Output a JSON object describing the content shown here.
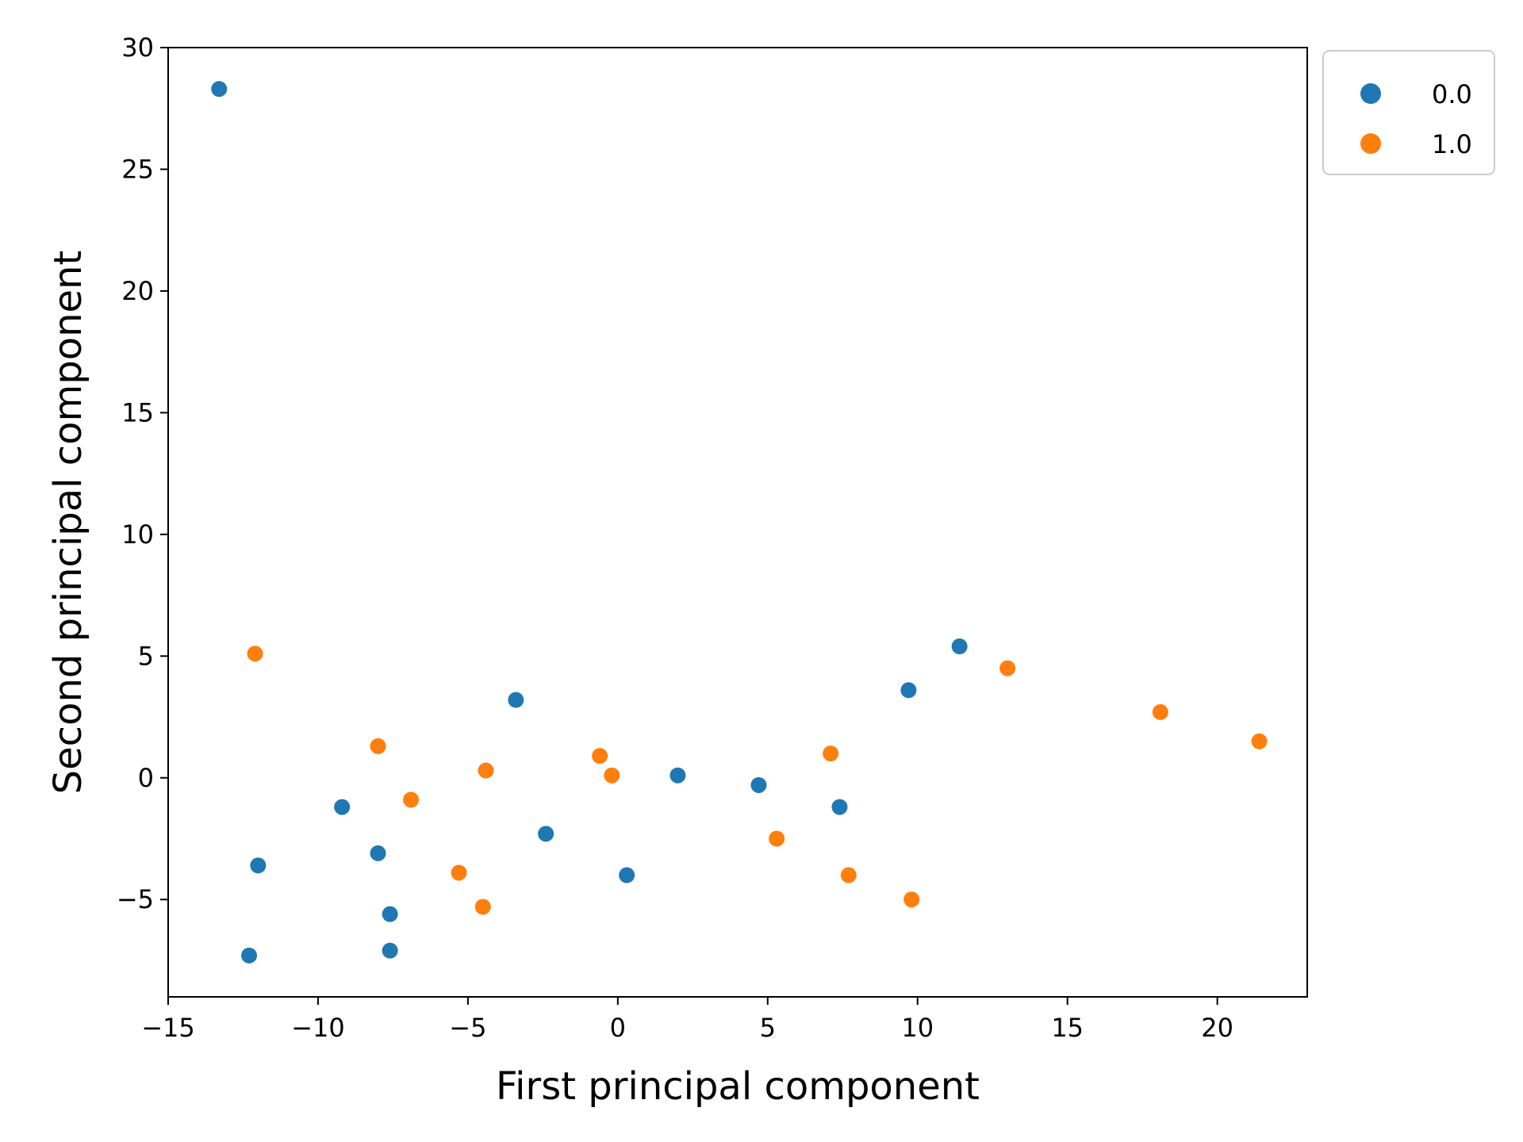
{
  "chart_data": {
    "type": "scatter",
    "xlabel": "First principal component",
    "ylabel": "Second principal component",
    "xlim": [
      -15,
      23
    ],
    "ylim": [
      -9,
      30
    ],
    "xticks": [
      -15,
      -10,
      -5,
      0,
      5,
      10,
      15,
      20
    ],
    "xtick_labels": [
      "−15",
      "−10",
      "−5",
      "0",
      "5",
      "10",
      "15",
      "20"
    ],
    "yticks": [
      -5,
      0,
      5,
      10,
      15,
      20,
      25,
      30
    ],
    "ytick_labels": [
      "−5",
      "0",
      "5",
      "10",
      "15",
      "20",
      "25",
      "30"
    ],
    "grid": false,
    "legend_placement": "upper-right-outside",
    "series": [
      {
        "name": "0.0",
        "color": "#1f77b4",
        "points": [
          [
            -13.3,
            28.3
          ],
          [
            -12.3,
            -7.3
          ],
          [
            -12.0,
            -3.6
          ],
          [
            -9.2,
            -1.2
          ],
          [
            -8.0,
            -3.1
          ],
          [
            -7.6,
            -5.6
          ],
          [
            -7.6,
            -7.1
          ],
          [
            -3.4,
            3.2
          ],
          [
            -2.4,
            -2.3
          ],
          [
            0.3,
            -4.0
          ],
          [
            2.0,
            0.1
          ],
          [
            4.7,
            -0.3
          ],
          [
            7.4,
            -1.2
          ],
          [
            9.7,
            3.6
          ],
          [
            11.4,
            5.4
          ]
        ]
      },
      {
        "name": "1.0",
        "color": "#ff7f0e",
        "points": [
          [
            -12.1,
            5.1
          ],
          [
            -8.0,
            1.3
          ],
          [
            -6.9,
            -0.9
          ],
          [
            -5.3,
            -3.9
          ],
          [
            -4.5,
            -5.3
          ],
          [
            -4.4,
            0.3
          ],
          [
            -0.6,
            0.9
          ],
          [
            -0.2,
            0.1
          ],
          [
            5.3,
            -2.5
          ],
          [
            7.1,
            1.0
          ],
          [
            7.7,
            -4.0
          ],
          [
            9.8,
            -5.0
          ],
          [
            13.0,
            4.5
          ],
          [
            18.1,
            2.7
          ],
          [
            21.4,
            1.5
          ]
        ]
      }
    ]
  }
}
